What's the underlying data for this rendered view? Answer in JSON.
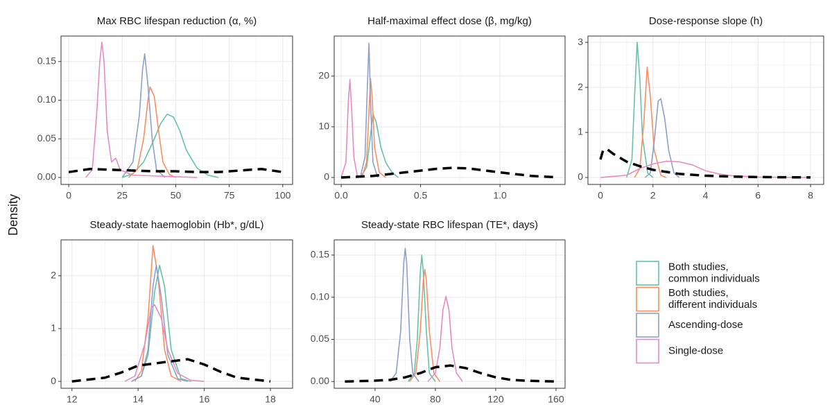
{
  "ylabel": "Density",
  "legend": {
    "position": "right"
  },
  "chart_data": [
    {
      "type": "line",
      "title": "Max RBC lifespan reduction (α, %)",
      "xlim": [
        -3.6,
        104.6
      ],
      "ylim": [
        -0.009,
        0.183
      ],
      "xticks": [
        0,
        25,
        50,
        75,
        100
      ],
      "yticks": [
        {
          "value": 0,
          "label": "0.00"
        },
        {
          "value": 0.05,
          "label": "0.05"
        },
        {
          "value": 0.1,
          "label": "0.10"
        },
        {
          "value": 0.15,
          "label": "0.15"
        }
      ],
      "grid": true,
      "series": [
        {
          "name": "Both studies,\ncommon individuals",
          "color": "#66c2a5",
          "x": [
            25,
            30,
            35,
            40,
            43,
            46,
            49,
            52,
            55,
            60,
            65,
            70
          ],
          "values": [
            0,
            0.005,
            0.02,
            0.05,
            0.07,
            0.082,
            0.078,
            0.06,
            0.035,
            0.012,
            0.003,
            0
          ]
        },
        {
          "name": "Both studies,\ndifferent individuals",
          "color": "#fc8d62",
          "x": [
            28,
            32,
            35,
            37,
            38,
            40,
            42,
            44,
            47,
            50
          ],
          "values": [
            0,
            0.01,
            0.05,
            0.1,
            0.117,
            0.105,
            0.06,
            0.02,
            0.004,
            0
          ]
        },
        {
          "name": "Ascending-dose",
          "color": "#8da0cb",
          "x": [
            25,
            30,
            33,
            34.5,
            35.5,
            37,
            39,
            41,
            45
          ],
          "values": [
            0,
            0.02,
            0.08,
            0.14,
            0.16,
            0.12,
            0.05,
            0.01,
            0
          ]
        },
        {
          "name": "Single-dose",
          "color": "#e78ac3",
          "x": [
            8,
            11,
            13,
            14.5,
            15.5,
            16.5,
            18,
            20,
            22,
            24,
            30,
            40,
            60
          ],
          "values": [
            0,
            0.01,
            0.08,
            0.15,
            0.175,
            0.15,
            0.06,
            0.02,
            0.025,
            0.01,
            0.003,
            0.002,
            0
          ]
        },
        {
          "color": "#000000",
          "dash": true,
          "x": [
            0,
            10,
            20,
            30,
            40,
            50,
            60,
            70,
            80,
            90,
            100
          ],
          "values": [
            0.007,
            0.011,
            0.01,
            0.009,
            0.008,
            0.008,
            0.007,
            0.007,
            0.009,
            0.011,
            0.007
          ]
        }
      ]
    },
    {
      "type": "line",
      "title": "Half-maximal effect dose (β, mg/kg)",
      "xlim": [
        -0.044,
        1.41
      ],
      "ylim": [
        -1.37,
        27.9
      ],
      "xticks": [
        {
          "value": 0,
          "label": "0.0"
        },
        {
          "value": 0.5,
          "label": "0.5"
        },
        {
          "value": 1,
          "label": "1.0"
        }
      ],
      "yticks": [
        0,
        10,
        20
      ],
      "grid": true,
      "series": [
        {
          "color": "#66c2a5",
          "x": [
            0.12,
            0.16,
            0.18,
            0.2,
            0.22,
            0.25,
            0.28,
            0.32,
            0.36
          ],
          "values": [
            0,
            2,
            7,
            12.5,
            11,
            6,
            3,
            1,
            0
          ]
        },
        {
          "color": "#fc8d62",
          "x": [
            0.13,
            0.16,
            0.175,
            0.185,
            0.195,
            0.21,
            0.24,
            0.28
          ],
          "values": [
            0,
            3,
            13,
            19.5,
            16,
            6,
            1,
            0
          ]
        },
        {
          "color": "#8da0cb",
          "x": [
            0.12,
            0.15,
            0.165,
            0.175,
            0.185,
            0.2,
            0.23
          ],
          "values": [
            0,
            4,
            18,
            26.5,
            15,
            3,
            0
          ]
        },
        {
          "color": "#e78ac3",
          "x": [
            0,
            0.03,
            0.045,
            0.055,
            0.065,
            0.08,
            0.1,
            0.12
          ],
          "values": [
            0,
            3,
            15,
            19.3,
            14,
            4,
            0.5,
            0
          ]
        },
        {
          "color": "#000000",
          "dash": true,
          "x": [
            0,
            0.2,
            0.4,
            0.6,
            0.7,
            0.8,
            1.0,
            1.2,
            1.35
          ],
          "values": [
            0,
            0.3,
            1.0,
            1.7,
            1.9,
            1.8,
            1.0,
            0.3,
            0.05
          ]
        }
      ]
    },
    {
      "type": "line",
      "title": "Dose-response slope (h)",
      "xlim": [
        -0.475,
        8.5
      ],
      "ylim": [
        -0.154,
        3.14
      ],
      "xticks": [
        0,
        2,
        4,
        6,
        8
      ],
      "yticks": [
        0,
        1,
        2,
        3
      ],
      "grid": true,
      "series": [
        {
          "color": "#66c2a5",
          "x": [
            1,
            1.2,
            1.3,
            1.4,
            1.5,
            1.6,
            1.8,
            2.0
          ],
          "values": [
            0,
            0.4,
            1.8,
            3,
            2.2,
            0.9,
            0.1,
            0
          ]
        },
        {
          "color": "#fc8d62",
          "x": [
            1.3,
            1.5,
            1.65,
            1.78,
            1.9,
            2.05,
            2.3,
            2.5
          ],
          "values": [
            0,
            0.2,
            1.2,
            2.45,
            1.8,
            0.6,
            0.05,
            0
          ]
        },
        {
          "color": "#8da0cb",
          "x": [
            1.7,
            1.9,
            2.05,
            2.2,
            2.3,
            2.45,
            2.6,
            2.8,
            3.0
          ],
          "values": [
            0,
            0.1,
            0.8,
            1.7,
            1.75,
            1.3,
            0.6,
            0.1,
            0
          ]
        },
        {
          "color": "#e78ac3",
          "x": [
            0,
            1,
            1.5,
            2,
            2.5,
            3,
            3.5,
            4,
            4.5,
            5,
            6,
            7,
            8
          ],
          "values": [
            0,
            0.05,
            0.2,
            0.3,
            0.36,
            0.35,
            0.28,
            0.15,
            0.08,
            0.04,
            0.01,
            0.003,
            0
          ]
        },
        {
          "color": "#000000",
          "dash": true,
          "x": [
            0,
            0.1,
            0.25,
            0.5,
            1,
            1.5,
            2,
            3,
            4,
            5,
            6,
            7,
            8
          ],
          "values": [
            0.4,
            0.6,
            0.63,
            0.52,
            0.35,
            0.25,
            0.17,
            0.08,
            0.04,
            0.02,
            0.01,
            0.005,
            0.002
          ]
        }
      ]
    },
    {
      "type": "line",
      "title": "Steady-state haemoglobin (Hb*, g/dL)",
      "xlim": [
        11.67,
        18.67
      ],
      "ylim": [
        -0.13,
        2.68
      ],
      "xticks": [
        12,
        14,
        16,
        18
      ],
      "yticks": [
        0,
        1,
        2
      ],
      "grid": true,
      "series": [
        {
          "color": "#66c2a5",
          "x": [
            13.8,
            14.1,
            14.3,
            14.5,
            14.65,
            14.8,
            15.0,
            15.3,
            15.6
          ],
          "values": [
            0,
            0.1,
            0.5,
            1.7,
            2.2,
            1.8,
            0.6,
            0.05,
            0
          ]
        },
        {
          "color": "#fc8d62",
          "x": [
            13.9,
            14.1,
            14.3,
            14.45,
            14.6,
            14.8,
            15.0,
            15.3
          ],
          "values": [
            0,
            0.2,
            1.2,
            2.57,
            2.0,
            0.6,
            0.1,
            0
          ]
        },
        {
          "color": "#8da0cb",
          "x": [
            13.8,
            14.1,
            14.3,
            14.45,
            14.55,
            14.7,
            14.9,
            15.2,
            15.5
          ],
          "values": [
            0,
            0.1,
            0.6,
            1.8,
            2.2,
            1.6,
            0.5,
            0.05,
            0
          ]
        },
        {
          "color": "#e78ac3",
          "x": [
            13.6,
            13.9,
            14.2,
            14.4,
            14.5,
            14.7,
            14.9,
            15.2,
            15.6,
            16
          ],
          "values": [
            0,
            0.1,
            0.7,
            1.4,
            1.45,
            1.2,
            0.6,
            0.15,
            0.02,
            0
          ]
        },
        {
          "color": "#000000",
          "dash": true,
          "x": [
            12,
            13,
            13.5,
            14,
            14.5,
            15,
            15.5,
            16,
            16.5,
            17,
            18
          ],
          "values": [
            0,
            0.07,
            0.17,
            0.3,
            0.34,
            0.38,
            0.42,
            0.32,
            0.18,
            0.07,
            0
          ]
        }
      ]
    },
    {
      "type": "line",
      "title": "Steady-state RBC lifespan (TE*, days)",
      "xlim": [
        12.9,
        166
      ],
      "ylim": [
        -0.008,
        0.168
      ],
      "xticks": [
        40,
        80,
        120,
        160
      ],
      "yticks": [
        {
          "value": 0,
          "label": "0.00"
        },
        {
          "value": 0.05,
          "label": "0.05"
        },
        {
          "value": 0.1,
          "label": "0.10"
        },
        {
          "value": 0.15,
          "label": "0.15"
        }
      ],
      "grid": true,
      "series": [
        {
          "color": "#66c2a5",
          "x": [
            62,
            66,
            68,
            70,
            71,
            72,
            74,
            76,
            80
          ],
          "values": [
            0,
            0.01,
            0.05,
            0.13,
            0.15,
            0.13,
            0.06,
            0.01,
            0
          ]
        },
        {
          "color": "#fc8d62",
          "x": [
            63,
            67,
            70,
            72,
            73,
            74,
            76,
            79,
            83
          ],
          "values": [
            0,
            0.01,
            0.06,
            0.12,
            0.133,
            0.12,
            0.06,
            0.01,
            0
          ]
        },
        {
          "color": "#8da0cb",
          "x": [
            50,
            54,
            57,
            59,
            60,
            61,
            63,
            65,
            69
          ],
          "values": [
            0,
            0.01,
            0.06,
            0.14,
            0.158,
            0.14,
            0.05,
            0.01,
            0
          ]
        },
        {
          "color": "#e78ac3",
          "x": [
            75,
            80,
            83,
            85,
            87,
            89,
            91,
            94,
            98
          ],
          "values": [
            0,
            0.01,
            0.04,
            0.085,
            0.101,
            0.085,
            0.04,
            0.01,
            0
          ]
        },
        {
          "color": "#000000",
          "dash": true,
          "x": [
            20,
            40,
            50,
            60,
            70,
            80,
            90,
            100,
            110,
            120,
            130,
            140,
            160
          ],
          "values": [
            0,
            0.001,
            0.002,
            0.005,
            0.01,
            0.017,
            0.019,
            0.016,
            0.01,
            0.005,
            0.002,
            0.001,
            0
          ]
        }
      ]
    }
  ]
}
